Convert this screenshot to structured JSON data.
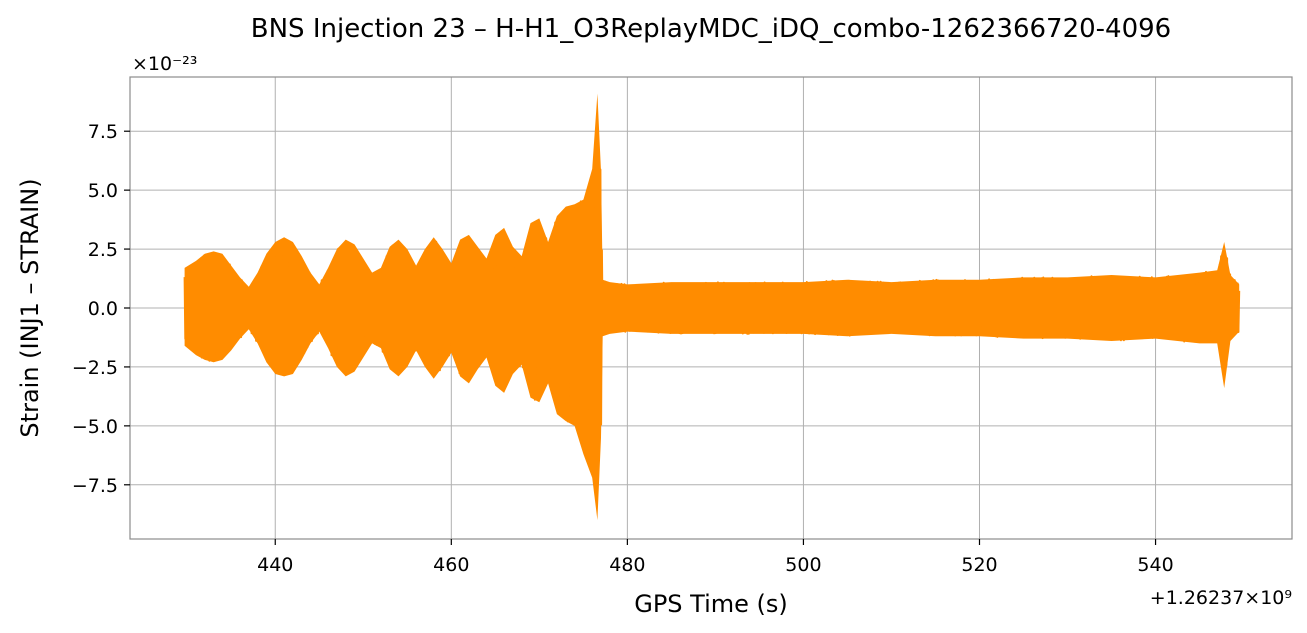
{
  "chart_data": {
    "type": "line",
    "title": "BNS Injection 23 – H-H1_O3ReplayMDC_iDQ_combo-1262366720-4096",
    "xlabel": "GPS Time (s)",
    "ylabel": "Strain (INJ1 – STRAIN)",
    "x_offset_label": "+1.26237×10⁹",
    "y_scale_label": "×10⁻²³",
    "xlim": [
      423.5,
      555.5
    ],
    "ylim": [
      -9.8,
      9.8
    ],
    "x_ticks": [
      440,
      460,
      480,
      500,
      520,
      540
    ],
    "x_tick_labels": [
      "440",
      "460",
      "480",
      "500",
      "520",
      "540"
    ],
    "y_ticks": [
      7.5,
      5.0,
      2.5,
      0.0,
      -2.5,
      -5.0,
      -7.5
    ],
    "y_tick_labels": [
      "7.5",
      "5.0",
      "2.5",
      "0.0",
      "−2.5",
      "−5.0",
      "−7.5"
    ],
    "grid": true,
    "color": "#ff8c00",
    "series": [
      {
        "x": [
          429.7,
          431.0,
          432.0,
          433.0,
          434.0,
          435.0,
          436.0,
          437.0,
          438.0,
          439.0,
          440.0,
          441.0,
          442.0,
          443.0,
          444.0,
          445.0,
          446.0,
          447.0,
          448.0,
          449.0,
          450.0,
          451.0,
          452.0,
          453.0,
          454.0,
          455.0,
          456.0,
          457.0,
          458.0,
          459.0,
          460.0,
          461.0,
          462.0,
          463.0,
          464.0,
          465.0,
          466.0,
          467.0,
          468.0,
          469.0,
          470.0,
          471.0,
          472.0,
          473.0,
          474.0,
          475.0,
          476.0,
          476.6,
          477.0,
          477.2,
          478.0,
          480.0,
          485.0,
          490.0,
          495.0,
          500.0,
          505.0,
          510.0,
          515.0,
          520.0,
          525.0,
          530.0,
          535.0,
          540.0,
          545.0,
          547.0,
          547.8,
          548.5,
          549.5
        ],
        "y_max": [
          1.7,
          2.0,
          2.3,
          2.4,
          2.3,
          1.8,
          1.3,
          0.9,
          1.5,
          2.3,
          2.8,
          3.0,
          2.8,
          2.2,
          1.5,
          1.0,
          1.7,
          2.5,
          2.9,
          2.7,
          2.1,
          1.5,
          1.7,
          2.6,
          2.9,
          2.5,
          1.8,
          2.5,
          3.0,
          2.5,
          1.9,
          2.9,
          3.1,
          2.6,
          2.1,
          3.1,
          3.4,
          2.6,
          2.2,
          3.6,
          3.8,
          2.8,
          3.9,
          4.3,
          4.4,
          4.6,
          5.9,
          9.1,
          5.8,
          1.2,
          1.1,
          1.0,
          1.1,
          1.1,
          1.1,
          1.1,
          1.2,
          1.1,
          1.2,
          1.2,
          1.3,
          1.3,
          1.4,
          1.3,
          1.5,
          1.6,
          2.8,
          1.4,
          1.0
        ],
        "y_min": [
          -1.6,
          -2.0,
          -2.2,
          -2.3,
          -2.2,
          -1.8,
          -1.3,
          -0.9,
          -1.5,
          -2.3,
          -2.8,
          -2.9,
          -2.8,
          -2.2,
          -1.5,
          -1.0,
          -1.7,
          -2.5,
          -2.9,
          -2.7,
          -2.1,
          -1.5,
          -1.7,
          -2.6,
          -2.9,
          -2.5,
          -1.8,
          -2.5,
          -3.0,
          -2.5,
          -1.9,
          -2.9,
          -3.2,
          -2.6,
          -2.1,
          -3.3,
          -3.6,
          -2.8,
          -2.4,
          -3.8,
          -4.0,
          -3.2,
          -4.5,
          -4.8,
          -5.0,
          -6.2,
          -7.2,
          -9.0,
          -5.5,
          -1.2,
          -1.1,
          -1.0,
          -1.1,
          -1.1,
          -1.1,
          -1.1,
          -1.2,
          -1.1,
          -1.2,
          -1.2,
          -1.3,
          -1.3,
          -1.4,
          -1.3,
          -1.5,
          -1.5,
          -3.4,
          -1.4,
          -1.0
        ]
      }
    ]
  }
}
